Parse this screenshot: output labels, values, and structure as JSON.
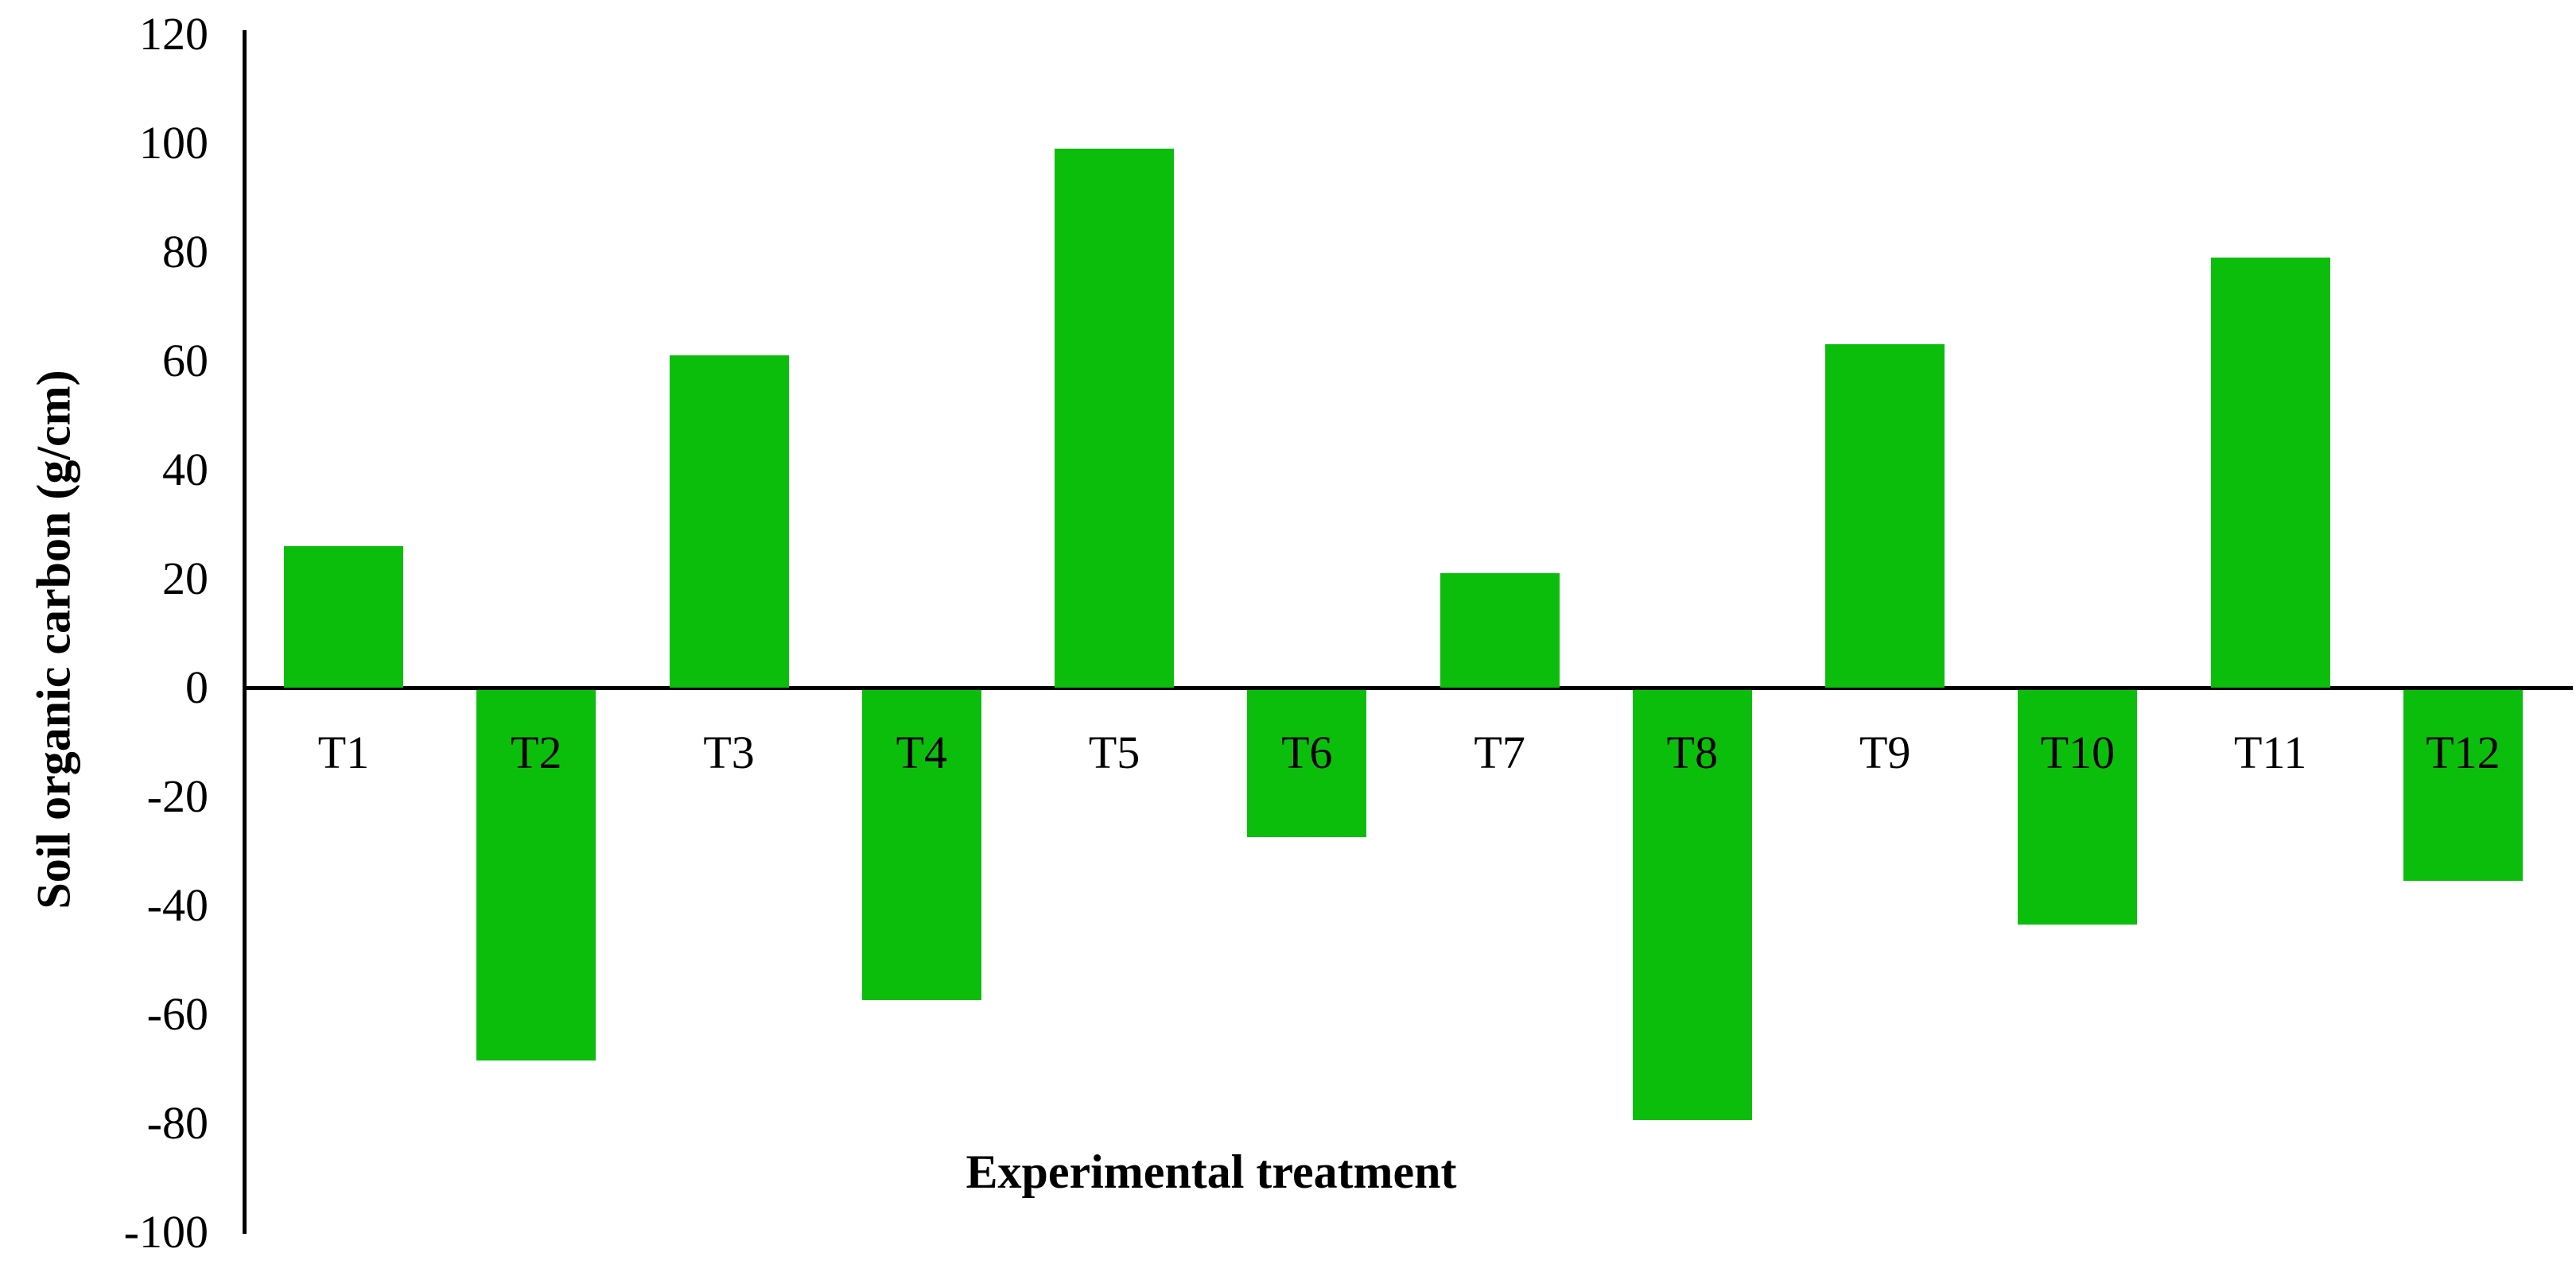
{
  "chart_data": {
    "type": "bar",
    "title": "",
    "xlabel": "Experimental treatment",
    "ylabel": "Soil organic carbon (g/cm)",
    "categories": [
      "T1",
      "T2",
      "T3",
      "T4",
      "T5",
      "T6",
      "T7",
      "T8",
      "T9",
      "T10",
      "T11",
      "T12"
    ],
    "values": [
      26,
      -68,
      61,
      -57,
      99,
      -27,
      21,
      -79,
      63,
      -43,
      79,
      -35
    ],
    "series": [
      {
        "name": "Soil organic carbon",
        "values": [
          26,
          -68,
          61,
          -57,
          99,
          -27,
          21,
          -79,
          63,
          -43,
          79,
          -35
        ]
      }
    ],
    "ylim": [
      -100,
      120
    ],
    "yticks": [
      120,
      100,
      80,
      60,
      40,
      20,
      0,
      -20,
      -40,
      -60,
      -80,
      -100
    ],
    "grid": "off",
    "legend": "none",
    "bar_color": "#0CBE0C",
    "axis_color": "#000000",
    "background_color": "#FFFFFF"
  }
}
